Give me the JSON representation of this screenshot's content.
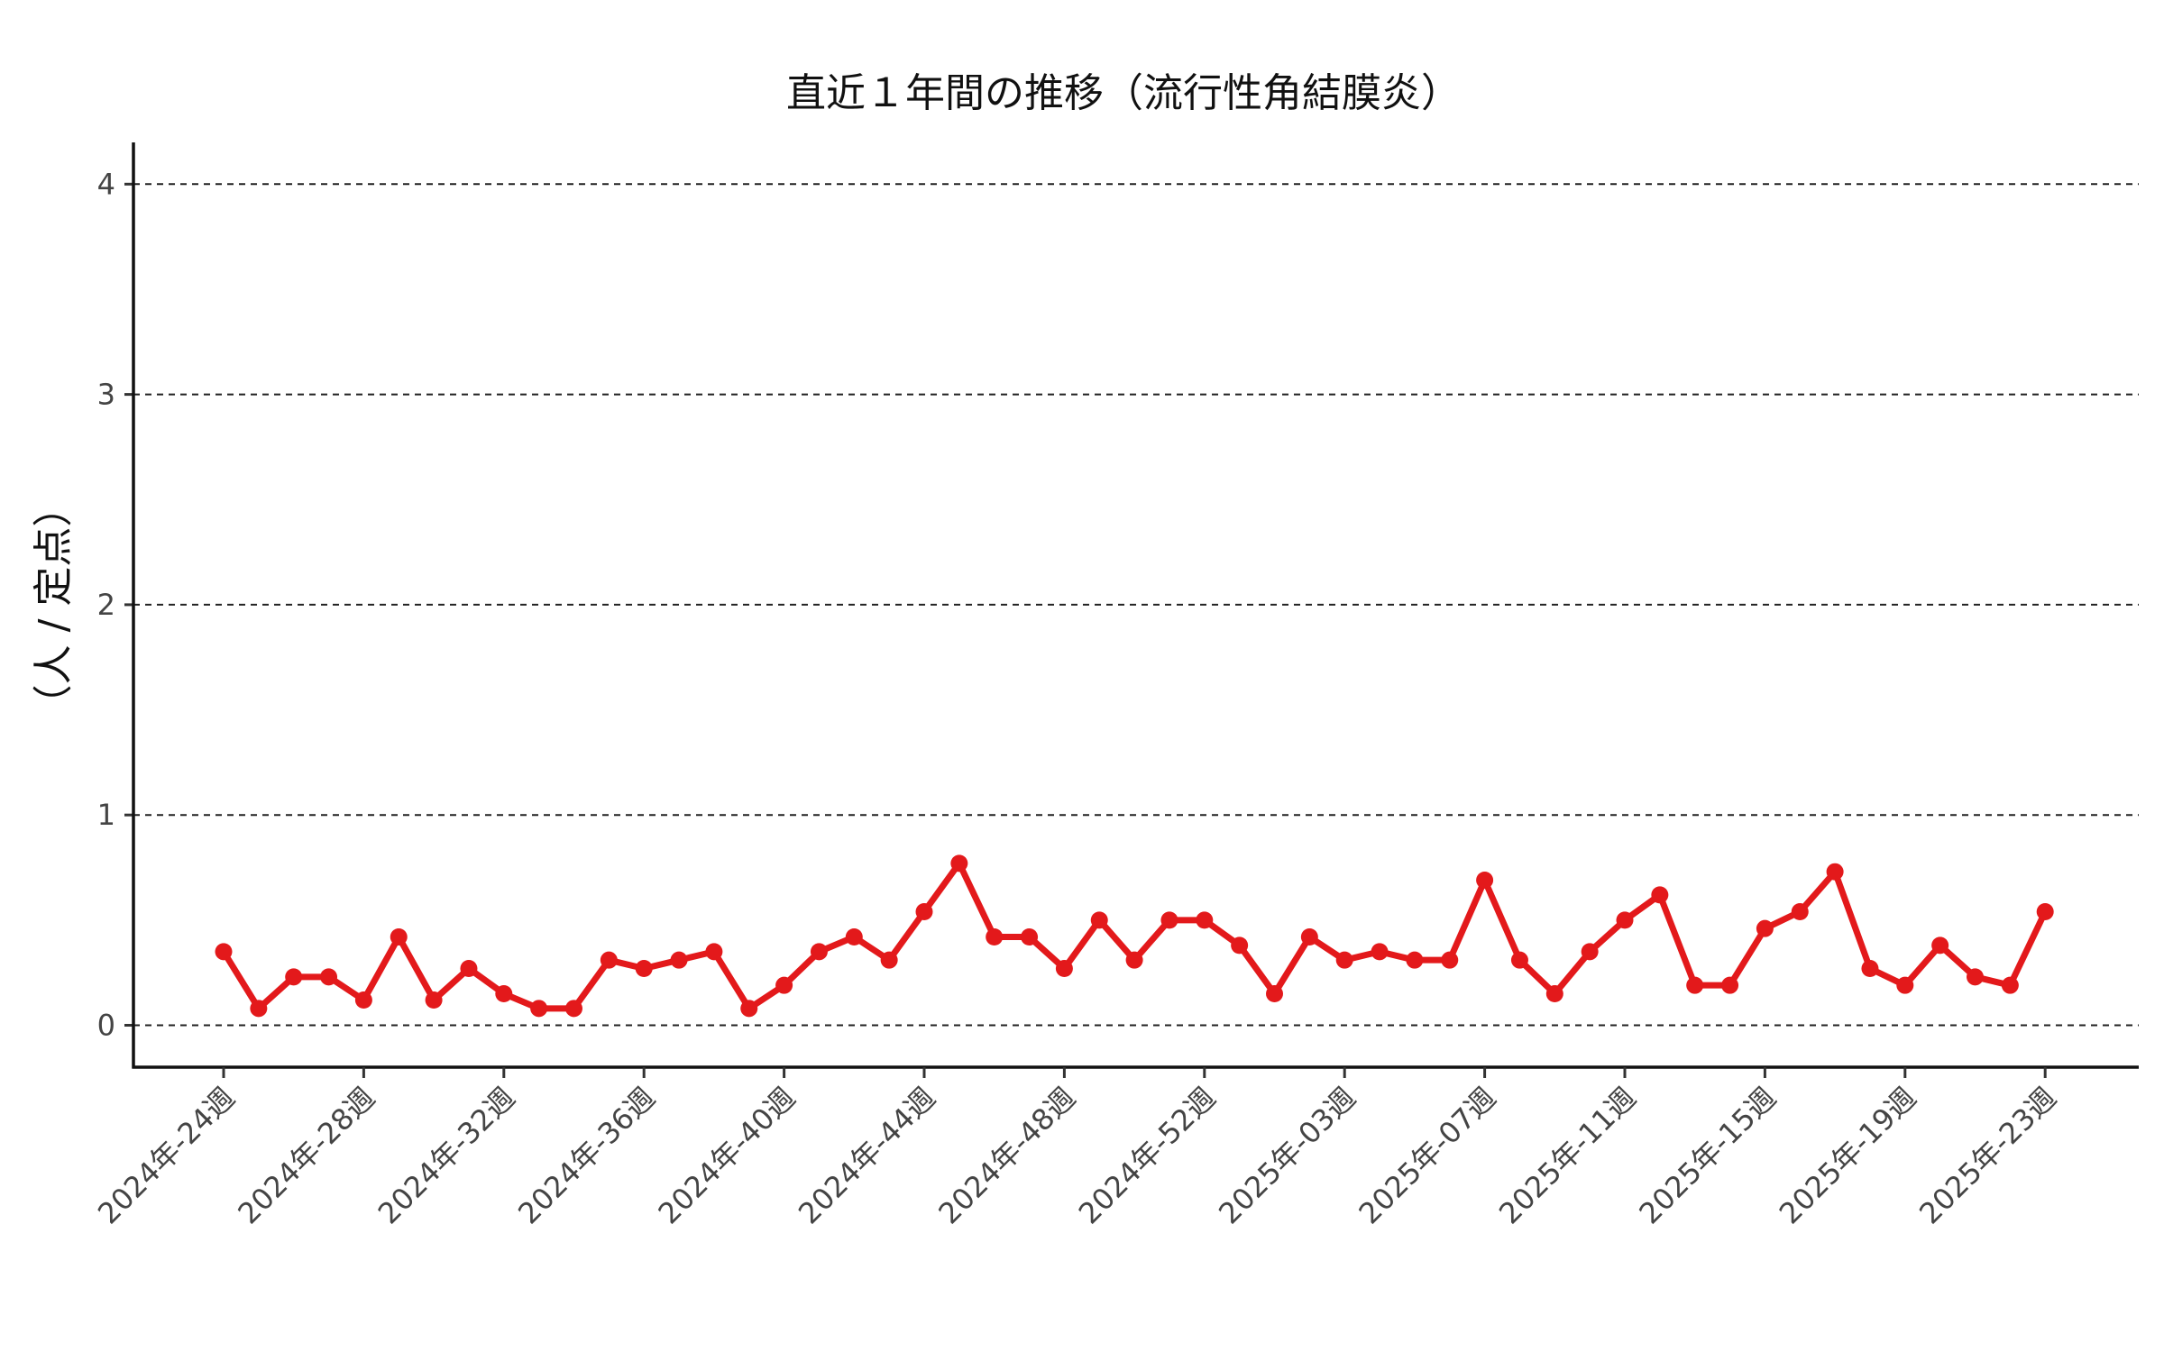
{
  "chart_data": {
    "type": "line",
    "title": "直近１年間の推移（流行性角結膜炎）",
    "xlabel": "",
    "ylabel": "（人 / 定点）",
    "ylim": [
      -0.2,
      4.2
    ],
    "yticks": [
      "0",
      "1",
      "2",
      "3",
      "4"
    ],
    "grid": "horizontal-dashed",
    "legend": "none",
    "color": "#e3191b",
    "x_tick_labels": [
      "2024年-24週",
      "2024年-28週",
      "2024年-32週",
      "2024年-36週",
      "2024年-40週",
      "2024年-44週",
      "2024年-48週",
      "2024年-52週",
      "2025年-03週",
      "2025年-07週",
      "2025年-11週",
      "2025年-15週",
      "2025年-19週",
      "2025年-23週"
    ],
    "series": [
      {
        "values": [
          0.35,
          0.08,
          0.23,
          0.23,
          0.12,
          0.42,
          0.12,
          0.27,
          0.15,
          0.08,
          0.08,
          0.31,
          0.27,
          0.31,
          0.35,
          0.08,
          0.19,
          0.35,
          0.42,
          0.31,
          0.54,
          0.77,
          0.42,
          0.42,
          0.27,
          0.5,
          0.31,
          0.5,
          0.5,
          0.38,
          0.15,
          0.42,
          0.31,
          0.35,
          0.31,
          0.31,
          0.69,
          0.31,
          0.15,
          0.35,
          0.5,
          0.62,
          0.19,
          0.19,
          0.46,
          0.54,
          0.73,
          0.27,
          0.19,
          0.38,
          0.23,
          0.19,
          0.54
        ]
      }
    ]
  }
}
